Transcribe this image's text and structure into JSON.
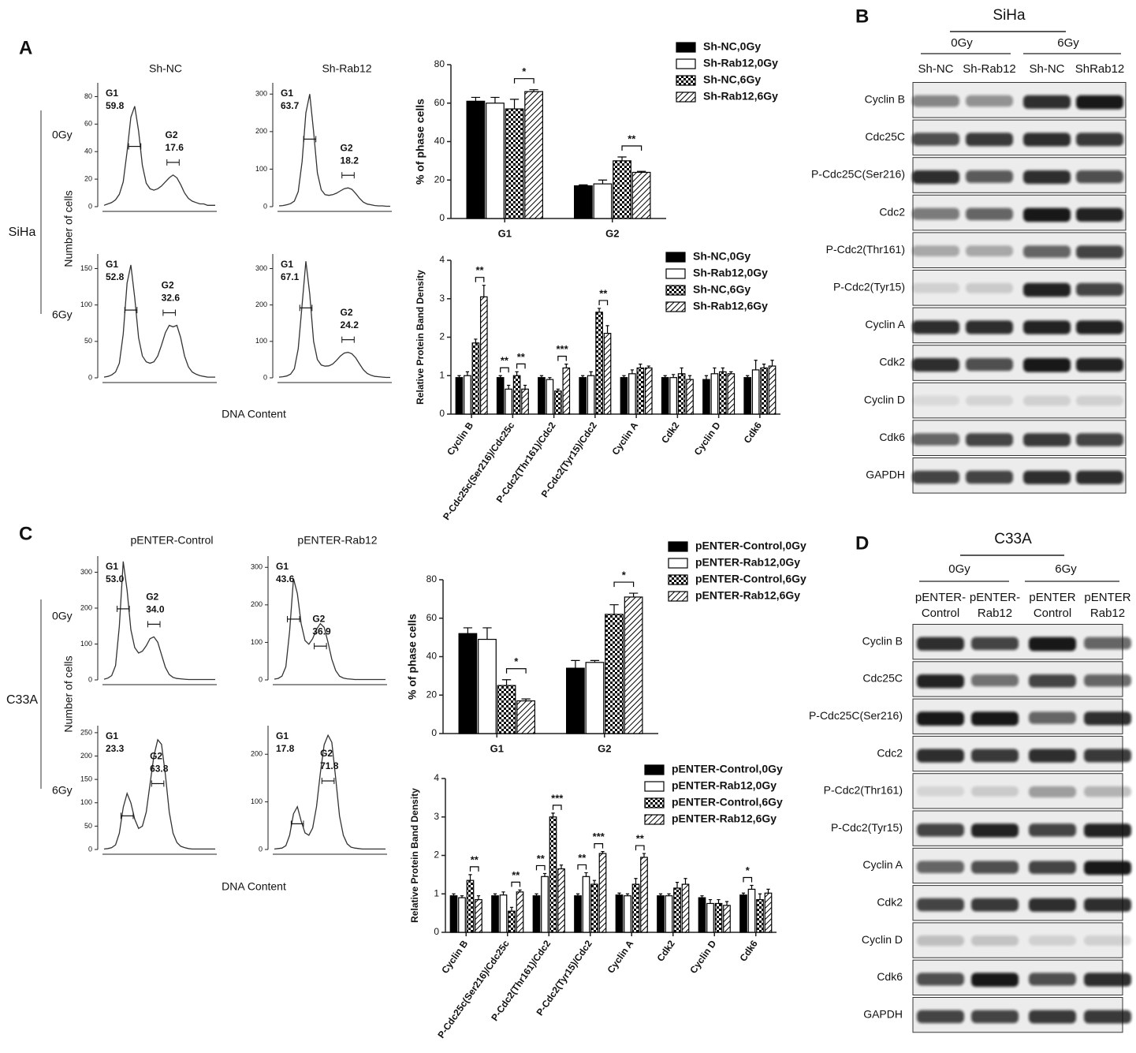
{
  "panel_letters": [
    "A",
    "B",
    "C",
    "D"
  ],
  "flow_panels": [
    {
      "cell_line": "SiHa",
      "column_titles": [
        "Sh-NC",
        "Sh-Rab12"
      ],
      "row_labels": [
        "0Gy",
        "6Gy"
      ],
      "y_label": "Number of cells",
      "x_label": "DNA Content"
    },
    {
      "cell_line": "C33A",
      "column_titles": [
        "pENTER-Control",
        "pENTER-Rab12"
      ],
      "row_labels": [
        "0Gy",
        "6Gy"
      ],
      "y_label": "Number of cells",
      "x_label": "DNA Content"
    }
  ],
  "chart_data": [
    {
      "type": "line",
      "ylim": [
        0,
        90
      ],
      "yticks": [
        0,
        20,
        40,
        60,
        80
      ],
      "color": "#333333",
      "values": [
        1,
        2,
        3,
        5,
        9,
        18,
        40,
        65,
        73,
        55,
        30,
        17,
        13,
        12,
        13,
        15,
        18,
        21,
        23,
        21,
        16,
        10,
        6,
        4,
        3,
        2,
        2,
        1,
        1,
        1
      ],
      "gates": [
        {
          "name": "G1",
          "value": 59.8
        },
        {
          "name": "G2",
          "value": 17.6
        }
      ]
    },
    {
      "type": "line",
      "ylim": [
        0,
        330
      ],
      "yticks": [
        0,
        100,
        200,
        300
      ],
      "color": "#333333",
      "values": [
        2,
        3,
        5,
        8,
        15,
        40,
        120,
        250,
        300,
        200,
        90,
        45,
        32,
        30,
        32,
        36,
        42,
        48,
        50,
        46,
        35,
        22,
        12,
        7,
        5,
        3,
        2,
        2,
        1,
        1
      ],
      "gates": [
        {
          "name": "G1",
          "value": 63.7
        },
        {
          "name": "G2",
          "value": 18.2
        }
      ]
    },
    {
      "type": "line",
      "ylim": [
        0,
        170
      ],
      "yticks": [
        0,
        50,
        100,
        150
      ],
      "color": "#333333",
      "values": [
        1,
        2,
        4,
        8,
        20,
        60,
        130,
        155,
        110,
        55,
        30,
        22,
        20,
        22,
        30,
        45,
        62,
        72,
        70,
        72,
        55,
        30,
        15,
        8,
        5,
        3,
        2,
        1,
        1,
        1
      ],
      "gates": [
        {
          "name": "G1",
          "value": 52.8
        },
        {
          "name": "G2",
          "value": 32.6
        }
      ]
    },
    {
      "type": "line",
      "ylim": [
        0,
        340
      ],
      "yticks": [
        0,
        100,
        200,
        300
      ],
      "color": "#333333",
      "values": [
        2,
        3,
        5,
        10,
        25,
        80,
        200,
        320,
        230,
        100,
        50,
        35,
        32,
        33,
        38,
        48,
        60,
        68,
        70,
        66,
        55,
        38,
        22,
        12,
        7,
        4,
        3,
        2,
        1,
        1
      ],
      "gates": [
        {
          "name": "G1",
          "value": 67.1
        },
        {
          "name": "G2",
          "value": 24.2
        }
      ]
    },
    {
      "type": "bar",
      "y_label": "% of phase cells",
      "ylim": [
        0,
        80
      ],
      "yticks": [
        0,
        20,
        40,
        60,
        80
      ],
      "categories": [
        "G1",
        "G2"
      ],
      "series": [
        {
          "name": "Sh-NC,0Gy",
          "color": "#000000",
          "pattern": "solid",
          "values": [
            61,
            17
          ],
          "errors": [
            2,
            0.5
          ]
        },
        {
          "name": "Sh-Rab12,0Gy",
          "color": "#ffffff",
          "pattern": "solid",
          "values": [
            60,
            18
          ],
          "errors": [
            3,
            2
          ]
        },
        {
          "name": "Sh-NC,6Gy",
          "color": "#000000",
          "pattern": "checker",
          "values": [
            57,
            30
          ],
          "errors": [
            5,
            2
          ]
        },
        {
          "name": "Sh-Rab12,6Gy",
          "color": "#000000",
          "pattern": "hatch",
          "values": [
            66,
            24
          ],
          "errors": [
            1,
            0.5
          ]
        }
      ],
      "significance": [
        {
          "category": 0,
          "series": [
            2,
            3
          ],
          "label": "*"
        },
        {
          "category": 1,
          "series": [
            2,
            3
          ],
          "label": "**"
        }
      ]
    },
    {
      "type": "bar",
      "y_label": "Relative Protein Band Density",
      "ylim": [
        0,
        4
      ],
      "yticks": [
        0,
        1,
        2,
        3,
        4
      ],
      "categories": [
        "Cyclin B",
        "P-Cdc25c(Ser216)/Cdc25c",
        "P-Cdc2(Thr161)/Cdc2",
        "P-Cdc2(Tyr15)/Cdc2",
        "Cyclin A",
        "Cdk2",
        "Cyclin D",
        "Cdk6"
      ],
      "series": [
        {
          "name": "Sh-NC,0Gy",
          "color": "#000000",
          "pattern": "solid",
          "values": [
            0.95,
            0.95,
            0.95,
            0.95,
            0.95,
            0.95,
            0.9,
            0.95
          ],
          "errors": [
            0.05,
            0.05,
            0.05,
            0.05,
            0.05,
            0.05,
            0.1,
            0.05
          ]
        },
        {
          "name": "Sh-Rab12,0Gy",
          "color": "#ffffff",
          "pattern": "solid",
          "values": [
            1.0,
            0.65,
            0.9,
            1.0,
            1.05,
            0.95,
            1.05,
            1.15
          ],
          "errors": [
            0.1,
            0.1,
            0.05,
            0.1,
            0.1,
            0.08,
            0.15,
            0.25
          ]
        },
        {
          "name": "Sh-NC,6Gy",
          "color": "#000000",
          "pattern": "checker",
          "values": [
            1.85,
            1.0,
            0.6,
            2.65,
            1.2,
            1.05,
            1.1,
            1.2
          ],
          "errors": [
            0.1,
            0.1,
            0.05,
            0.1,
            0.1,
            0.15,
            0.1,
            0.1
          ]
        },
        {
          "name": "Sh-Rab12,6Gy",
          "color": "#000000",
          "pattern": "hatch",
          "values": [
            3.05,
            0.65,
            1.2,
            2.1,
            1.2,
            0.9,
            1.05,
            1.25
          ],
          "errors": [
            0.3,
            0.1,
            0.1,
            0.2,
            0.05,
            0.1,
            0.05,
            0.15
          ]
        }
      ],
      "significance": [
        {
          "category": 0,
          "series": [
            2,
            3
          ],
          "label": "**"
        },
        {
          "category": 1,
          "series": [
            0,
            1
          ],
          "label": "**"
        },
        {
          "category": 1,
          "series": [
            2,
            3
          ],
          "label": "**"
        },
        {
          "category": 2,
          "series": [
            2,
            3
          ],
          "label": "***"
        },
        {
          "category": 3,
          "series": [
            2,
            3
          ],
          "label": "**"
        }
      ]
    },
    {
      "type": "line",
      "ylim": [
        0,
        345
      ],
      "yticks": [
        0,
        100,
        200,
        300
      ],
      "color": "#333333",
      "values": [
        2,
        5,
        12,
        40,
        150,
        330,
        250,
        140,
        90,
        75,
        80,
        95,
        115,
        120,
        105,
        70,
        35,
        15,
        7,
        4,
        3,
        2,
        1,
        1,
        1,
        1,
        1,
        1,
        1,
        1
      ],
      "gates": [
        {
          "name": "G1",
          "value": 53,
          "label": "53.0"
        },
        {
          "name": "G2",
          "value": 34,
          "label": "34.0"
        }
      ]
    },
    {
      "type": "line",
      "ylim": [
        0,
        330
      ],
      "yticks": [
        0,
        100,
        200,
        300
      ],
      "color": "#333333",
      "values": [
        2,
        4,
        10,
        35,
        130,
        270,
        230,
        150,
        105,
        95,
        110,
        135,
        150,
        140,
        100,
        55,
        25,
        10,
        5,
        3,
        2,
        1,
        1,
        1,
        1,
        1,
        1,
        1,
        1,
        1
      ],
      "gates": [
        {
          "name": "G1",
          "value": 43.6
        },
        {
          "name": "G2",
          "value": 36.9
        }
      ]
    },
    {
      "type": "line",
      "ylim": [
        0,
        265
      ],
      "yticks": [
        0,
        50,
        100,
        150,
        200,
        250
      ],
      "color": "#333333",
      "values": [
        1,
        2,
        4,
        10,
        35,
        90,
        120,
        100,
        65,
        45,
        50,
        80,
        140,
        200,
        235,
        225,
        160,
        80,
        35,
        15,
        7,
        4,
        2,
        1,
        1,
        1,
        1,
        1,
        1,
        1
      ],
      "gates": [
        {
          "name": "G1",
          "value": 23.3
        },
        {
          "name": "G2",
          "value": 63.8
        }
      ]
    },
    {
      "type": "line",
      "ylim": [
        0,
        260
      ],
      "yticks": [
        0,
        100,
        200
      ],
      "color": "#333333",
      "values": [
        1,
        2,
        3,
        8,
        30,
        75,
        90,
        60,
        35,
        30,
        45,
        90,
        160,
        220,
        240,
        225,
        150,
        70,
        30,
        12,
        5,
        3,
        2,
        1,
        1,
        1,
        1,
        1,
        1,
        1
      ],
      "gates": [
        {
          "name": "G1",
          "value": 17.8
        },
        {
          "name": "G2",
          "value": 71.8
        }
      ]
    },
    {
      "type": "bar",
      "y_label": "% of phase cells",
      "ylim": [
        0,
        80
      ],
      "yticks": [
        0,
        20,
        40,
        60,
        80
      ],
      "categories": [
        "G1",
        "G2"
      ],
      "series": [
        {
          "name": "pENTER-Control,0Gy",
          "color": "#000000",
          "pattern": "solid",
          "values": [
            52,
            34
          ],
          "errors": [
            3,
            4
          ]
        },
        {
          "name": "pENTER-Rab12,0Gy",
          "color": "#ffffff",
          "pattern": "solid",
          "values": [
            49,
            37
          ],
          "errors": [
            6,
            1
          ]
        },
        {
          "name": "pENTER-Control,6Gy",
          "color": "#000000",
          "pattern": "checker",
          "values": [
            25,
            62
          ],
          "errors": [
            3,
            5
          ]
        },
        {
          "name": "pENTER-Rab12,6Gy",
          "color": "#000000",
          "pattern": "hatch",
          "values": [
            17,
            71
          ],
          "errors": [
            1,
            2
          ]
        }
      ],
      "significance": [
        {
          "category": 0,
          "series": [
            2,
            3
          ],
          "label": "*"
        },
        {
          "category": 1,
          "series": [
            2,
            3
          ],
          "label": "*"
        }
      ]
    },
    {
      "type": "bar",
      "y_label": "Relative Protein Band Density",
      "ylim": [
        0,
        4
      ],
      "yticks": [
        0,
        1,
        2,
        3,
        4
      ],
      "categories": [
        "Cyclin B",
        "P-Cdc25c(Ser216)/Cdc25c",
        "P-Cdc2(Thr161)/Cdc2",
        "P-Cdc2(Tyr15)/Cdc2",
        "Cyclin A",
        "Cdk2",
        "Cyclin D",
        "Cdk6"
      ],
      "series": [
        {
          "name": "pENTER-Control,0Gy",
          "color": "#000000",
          "pattern": "solid",
          "values": [
            0.95,
            0.95,
            0.95,
            0.95,
            0.97,
            0.95,
            0.9,
            0.97
          ],
          "errors": [
            0.05,
            0.05,
            0.05,
            0.05,
            0.05,
            0.05,
            0.05,
            0.05
          ]
        },
        {
          "name": "pENTER-Rab12,0Gy",
          "color": "#ffffff",
          "pattern": "solid",
          "values": [
            0.9,
            0.97,
            1.45,
            1.45,
            0.95,
            0.95,
            0.75,
            1.12
          ],
          "errors": [
            0.05,
            0.08,
            0.08,
            0.1,
            0.05,
            0.05,
            0.1,
            0.1
          ]
        },
        {
          "name": "pENTER-Control,6Gy",
          "color": "#000000",
          "pattern": "checker",
          "values": [
            1.35,
            0.55,
            3.0,
            1.25,
            1.25,
            1.15,
            0.75,
            0.85
          ],
          "errors": [
            0.15,
            0.1,
            0.1,
            0.1,
            0.15,
            0.15,
            0.1,
            0.15
          ]
        },
        {
          "name": "pENTER-Rab12,6Gy",
          "color": "#000000",
          "pattern": "hatch",
          "values": [
            0.85,
            1.05,
            1.65,
            2.05,
            1.95,
            1.25,
            0.7,
            1.02
          ],
          "errors": [
            0.1,
            0.05,
            0.1,
            0.05,
            0.1,
            0.15,
            0.1,
            0.1
          ]
        }
      ],
      "significance": [
        {
          "category": 0,
          "series": [
            2,
            3
          ],
          "label": "**"
        },
        {
          "category": 1,
          "series": [
            2,
            3
          ],
          "label": "**"
        },
        {
          "category": 2,
          "series": [
            0,
            1
          ],
          "label": "**"
        },
        {
          "category": 2,
          "series": [
            2,
            3
          ],
          "label": "***"
        },
        {
          "category": 3,
          "series": [
            0,
            1
          ],
          "label": "**"
        },
        {
          "category": 3,
          "series": [
            2,
            3
          ],
          "label": "***"
        },
        {
          "category": 4,
          "series": [
            2,
            3
          ],
          "label": "**"
        },
        {
          "category": 7,
          "series": [
            0,
            1
          ],
          "label": "*"
        }
      ]
    }
  ],
  "blots": [
    {
      "cell_line": "SiHa",
      "conditions": [
        "0Gy",
        "6Gy"
      ],
      "lanes": [
        [
          "Sh-NC"
        ],
        [
          "Sh-Rab12"
        ],
        [
          "Sh-NC"
        ],
        [
          "ShRab12"
        ]
      ],
      "proteins": [
        "Cyclin B",
        "Cdc25C",
        "P-Cdc25C(Ser216)",
        "Cdc2",
        "P-Cdc2(Thr161)",
        "P-Cdc2(Tyr15)",
        "Cyclin A",
        "Cdk2",
        "Cyclin D",
        "Cdk6",
        "GAPDH"
      ]
    },
    {
      "cell_line": "C33A",
      "conditions": [
        "0Gy",
        "6Gy"
      ],
      "lanes": [
        [
          "pENTER-",
          "Control"
        ],
        [
          "pENTER-",
          "Rab12"
        ],
        [
          "pENTER",
          "Control"
        ],
        [
          "pENTER",
          "Rab12"
        ]
      ],
      "proteins": [
        "Cyclin B",
        "Cdc25C",
        "P-Cdc25C(Ser216)",
        "Cdc2",
        "P-Cdc2(Thr161)",
        "P-Cdc2(Tyr15)",
        "Cyclin A",
        "Cdk2",
        "Cyclin D",
        "Cdk6",
        "GAPDH"
      ]
    }
  ]
}
